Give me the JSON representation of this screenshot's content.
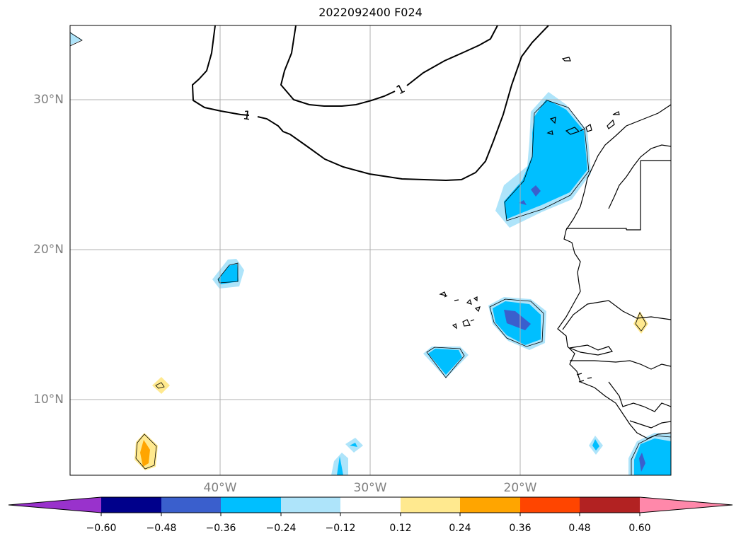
{
  "map": {
    "title": "2022092400 F024",
    "lat_labels": [
      {
        "lat": 30,
        "text": "30°N"
      },
      {
        "lat": 20,
        "text": "20°N"
      },
      {
        "lat": 10,
        "text": "10°N"
      }
    ],
    "lon_labels": [
      {
        "lon": -40,
        "text": "40°W"
      },
      {
        "lon": -30,
        "text": "30°W"
      },
      {
        "lon": -20,
        "text": "20°W"
      }
    ],
    "contour_labels": [
      {
        "text": "1"
      },
      {
        "text": "1"
      }
    ],
    "extent": {
      "lon_min": -50,
      "lon_max": -10,
      "lat_min": 5,
      "lat_max": 35
    },
    "gridlines": true
  },
  "colorbar": {
    "levels": [
      "−0.60",
      "−0.48",
      "−0.36",
      "−0.24",
      "−0.12",
      "0.12",
      "0.24",
      "0.36",
      "0.48",
      "0.60"
    ],
    "colors": [
      "#9932cc",
      "#00008b",
      "#3a5fcd",
      "#00bfff",
      "#aee4fa",
      "#ffffff",
      "#ffe98f",
      "#ffa500",
      "#ff4500",
      "#b22222",
      "#ff88aa"
    ],
    "extend": "both"
  }
}
